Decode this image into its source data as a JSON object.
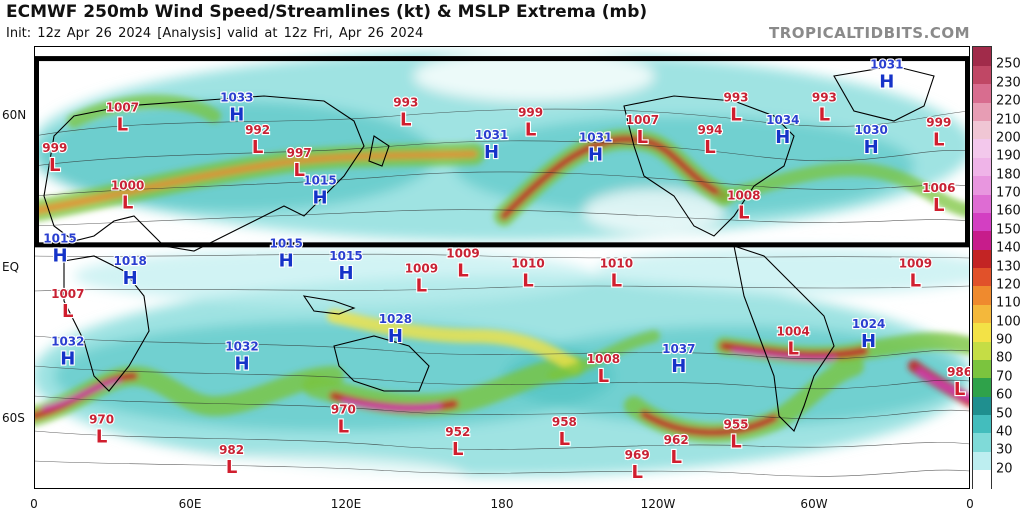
{
  "header": {
    "title": "ECMWF 250mb Wind Speed/Streamlines (kt) & MSLP Extrema (mb)",
    "subtitle": "Init: 12z Apr 26 2024  [Analysis]  valid at 12z Fri, Apr 26 2024",
    "watermark": "TROPICALTIDBITS.COM"
  },
  "map": {
    "lat_labels": [
      {
        "label": "60N",
        "lat": 60
      },
      {
        "label": "EQ",
        "lat": 0
      },
      {
        "label": "60S",
        "lat": -60
      }
    ],
    "lon_labels": [
      {
        "label": "0",
        "lon": 0
      },
      {
        "label": "60E",
        "lon": 60
      },
      {
        "label": "120E",
        "lon": 120
      },
      {
        "label": "180",
        "lon": 180
      },
      {
        "label": "120W",
        "lon": 240
      },
      {
        "label": "60W",
        "lon": 300
      },
      {
        "label": "0",
        "lon": 360
      }
    ],
    "highlight_box": {
      "lat_north": 83,
      "lat_south": 9,
      "lon_west": 0,
      "lon_east": 360
    },
    "pressure_systems": [
      {
        "type": "H",
        "value": "1033",
        "lon": 78,
        "lat": 62
      },
      {
        "type": "H",
        "value": "1031",
        "lon": 176,
        "lat": 47
      },
      {
        "type": "H",
        "value": "1031",
        "lon": 216,
        "lat": 46
      },
      {
        "type": "H",
        "value": "1034",
        "lon": 288,
        "lat": 53
      },
      {
        "type": "H",
        "value": "1030",
        "lon": 322,
        "lat": 49
      },
      {
        "type": "H",
        "value": "1031",
        "lon": 328,
        "lat": 75
      },
      {
        "type": "H",
        "value": "1015",
        "lon": 110,
        "lat": 29
      },
      {
        "type": "H",
        "value": "1015",
        "lon": 10,
        "lat": 6
      },
      {
        "type": "H",
        "value": "1015",
        "lon": 97,
        "lat": 4
      },
      {
        "type": "H",
        "value": "1015",
        "lon": 120,
        "lat": -1
      },
      {
        "type": "H",
        "value": "1018",
        "lon": 37,
        "lat": -3
      },
      {
        "type": "H",
        "value": "1032",
        "lon": 13,
        "lat": -35
      },
      {
        "type": "H",
        "value": "1032",
        "lon": 80,
        "lat": -37
      },
      {
        "type": "H",
        "value": "1028",
        "lon": 139,
        "lat": -26
      },
      {
        "type": "H",
        "value": "1037",
        "lon": 248,
        "lat": -38
      },
      {
        "type": "H",
        "value": "1024",
        "lon": 321,
        "lat": -28
      },
      {
        "type": "L",
        "value": "1007",
        "lon": 34,
        "lat": 58
      },
      {
        "type": "L",
        "value": "993",
        "lon": 143,
        "lat": 60
      },
      {
        "type": "L",
        "value": "999",
        "lon": 191,
        "lat": 56
      },
      {
        "type": "L",
        "value": "993",
        "lon": 270,
        "lat": 62
      },
      {
        "type": "L",
        "value": "993",
        "lon": 304,
        "lat": 62
      },
      {
        "type": "L",
        "value": "999",
        "lon": 348,
        "lat": 52
      },
      {
        "type": "L",
        "value": "1007",
        "lon": 234,
        "lat": 53
      },
      {
        "type": "L",
        "value": "994",
        "lon": 260,
        "lat": 49
      },
      {
        "type": "L",
        "value": "992",
        "lon": 86,
        "lat": 49
      },
      {
        "type": "L",
        "value": "997",
        "lon": 102,
        "lat": 40
      },
      {
        "type": "L",
        "value": "999",
        "lon": 8,
        "lat": 42
      },
      {
        "type": "L",
        "value": "1000",
        "lon": 36,
        "lat": 27
      },
      {
        "type": "L",
        "value": "1006",
        "lon": 348,
        "lat": 26
      },
      {
        "type": "L",
        "value": "1008",
        "lon": 273,
        "lat": 23
      },
      {
        "type": "L",
        "value": "1009",
        "lon": 149,
        "lat": -6
      },
      {
        "type": "L",
        "value": "1009",
        "lon": 165,
        "lat": 0
      },
      {
        "type": "L",
        "value": "1010",
        "lon": 190,
        "lat": -4
      },
      {
        "type": "L",
        "value": "1010",
        "lon": 224,
        "lat": -4
      },
      {
        "type": "L",
        "value": "1009",
        "lon": 339,
        "lat": -4
      },
      {
        "type": "L",
        "value": "1007",
        "lon": 13,
        "lat": -16
      },
      {
        "type": "L",
        "value": "1004",
        "lon": 292,
        "lat": -31
      },
      {
        "type": "L",
        "value": "1008",
        "lon": 219,
        "lat": -42
      },
      {
        "type": "L",
        "value": "986",
        "lon": 356,
        "lat": -47
      },
      {
        "type": "L",
        "value": "970",
        "lon": 26,
        "lat": -66
      },
      {
        "type": "L",
        "value": "970",
        "lon": 119,
        "lat": -62
      },
      {
        "type": "L",
        "value": "982",
        "lon": 76,
        "lat": -78
      },
      {
        "type": "L",
        "value": "952",
        "lon": 163,
        "lat": -71
      },
      {
        "type": "L",
        "value": "958",
        "lon": 204,
        "lat": -67
      },
      {
        "type": "L",
        "value": "962",
        "lon": 247,
        "lat": -74
      },
      {
        "type": "L",
        "value": "955",
        "lon": 270,
        "lat": -68
      },
      {
        "type": "L",
        "value": "969",
        "lon": 232,
        "lat": -80
      }
    ]
  },
  "colorbar": {
    "labels": [
      "20",
      "30",
      "40",
      "50",
      "60",
      "70",
      "80",
      "90",
      "100",
      "110",
      "120",
      "130",
      "140",
      "150",
      "160",
      "170",
      "180",
      "190",
      "200",
      "210",
      "220",
      "230",
      "250"
    ],
    "colors": [
      "#ffffff",
      "#bdeef0",
      "#7fdad8",
      "#43bdbd",
      "#1f8f8f",
      "#2fa24a",
      "#7bc43e",
      "#c5dd45",
      "#f3e246",
      "#f4b83b",
      "#ef8a2e",
      "#e1512a",
      "#c32424",
      "#c71c8b",
      "#d33fc2",
      "#de6cd3",
      "#e896df",
      "#efb4e8",
      "#f3c8ec",
      "#f0c6d4",
      "#e79db4",
      "#d86d8f",
      "#c04765",
      "#a12b4a"
    ]
  },
  "colors": {
    "high": "#1533c8",
    "low": "#d01e2e",
    "high_pressure_label": "#2a3fd0",
    "low_pressure_label": "#c82234"
  }
}
